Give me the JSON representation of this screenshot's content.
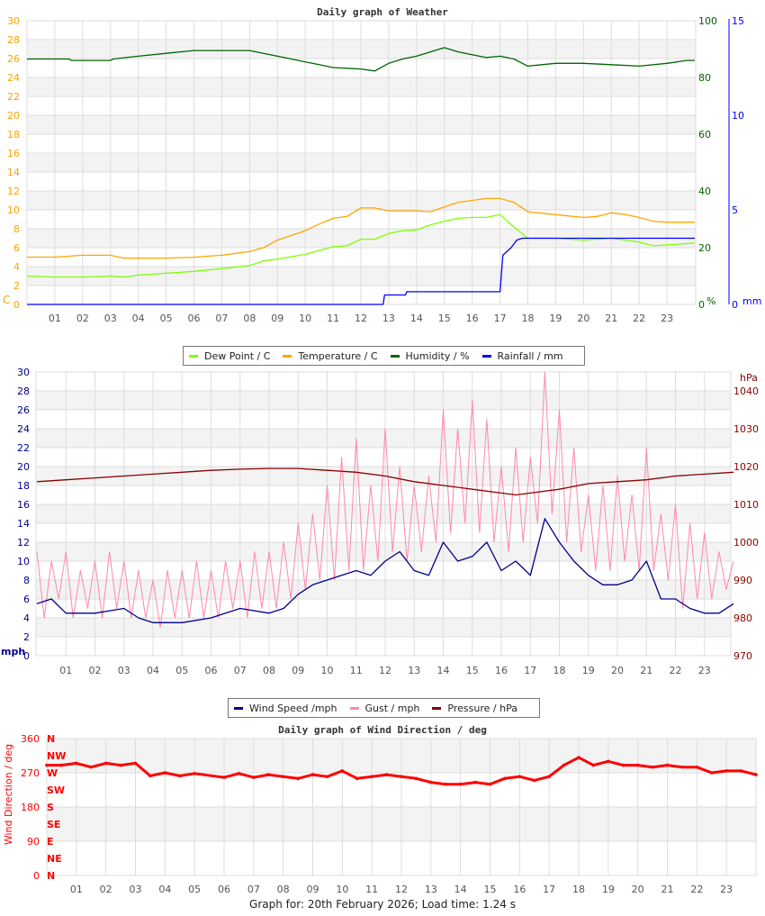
{
  "chart_data": [
    {
      "type": "line",
      "title": "Daily graph of Weather",
      "x_ticks": [
        "01",
        "02",
        "03",
        "04",
        "05",
        "06",
        "07",
        "08",
        "09",
        "10",
        "11",
        "12",
        "13",
        "14",
        "15",
        "16",
        "17",
        "18",
        "19",
        "20",
        "21",
        "22",
        "23"
      ],
      "xlim": [
        0,
        24
      ],
      "grid": true,
      "legend_position": "bottom",
      "axes": {
        "left": {
          "label": "C",
          "ylim": [
            0,
            30
          ],
          "step": 2,
          "color": "#f8a400"
        },
        "right1": {
          "label": "%",
          "ylim": [
            0,
            100
          ],
          "step": 20,
          "color": "#006400"
        },
        "right2": {
          "label": "mm",
          "ylim": [
            0,
            15
          ],
          "step": 5,
          "color": "#0000ff"
        }
      },
      "series": [
        {
          "name": "Dew Point / C",
          "axis": "left",
          "color": "#80ff00",
          "x": [
            0,
            1,
            2,
            3,
            3.5,
            4,
            5,
            6,
            7,
            8,
            8.5,
            9,
            10,
            10.5,
            11,
            11.5,
            12,
            12.5,
            13,
            13.5,
            14,
            14.5,
            15,
            15.5,
            16,
            16.5,
            17,
            17.5,
            18,
            19,
            20,
            21,
            22,
            22.5,
            23,
            24
          ],
          "y": [
            3.0,
            2.9,
            2.9,
            3.0,
            2.9,
            3.1,
            3.3,
            3.5,
            3.8,
            4.1,
            4.6,
            4.8,
            5.3,
            5.7,
            6.1,
            6.2,
            6.9,
            6.9,
            7.5,
            7.8,
            7.9,
            8.4,
            8.8,
            9.1,
            9.2,
            9.2,
            9.5,
            8.2,
            7.0,
            7.0,
            6.8,
            7.0,
            6.6,
            6.2,
            6.3,
            6.5
          ]
        },
        {
          "name": "Temperature / C",
          "axis": "left",
          "color": "#ffa500",
          "x": [
            0,
            1,
            2,
            3,
            3.5,
            4,
            5,
            6,
            7,
            8,
            8.5,
            9,
            10,
            10.5,
            11,
            11.5,
            12,
            12.5,
            13,
            14,
            14.5,
            15,
            15.5,
            16,
            16.5,
            17,
            17.5,
            18,
            19,
            20,
            20.5,
            21,
            21.5,
            22,
            22.5,
            23,
            24
          ],
          "y": [
            5.0,
            5.0,
            5.2,
            5.2,
            4.9,
            4.9,
            4.9,
            5.0,
            5.2,
            5.6,
            6.0,
            6.8,
            7.8,
            8.5,
            9.1,
            9.3,
            10.2,
            10.2,
            9.9,
            9.9,
            9.8,
            10.3,
            10.8,
            11.0,
            11.2,
            11.2,
            10.8,
            9.8,
            9.5,
            9.2,
            9.3,
            9.7,
            9.5,
            9.2,
            8.8,
            8.7,
            8.7
          ]
        },
        {
          "name": "Humidity / %",
          "axis": "right1",
          "color": "#006400",
          "x": [
            0,
            1.5,
            1.6,
            3,
            3.1,
            4,
            5,
            6,
            8,
            8.5,
            9,
            9.5,
            10,
            10.5,
            11,
            12,
            12.5,
            13,
            13.5,
            14,
            14.5,
            15,
            15.5,
            16,
            16.5,
            17,
            17.5,
            18,
            18.5,
            19,
            20,
            21,
            22,
            23,
            23.7,
            24
          ],
          "y": [
            86.5,
            86.5,
            86,
            86,
            86.5,
            87.5,
            88.5,
            89.5,
            89.5,
            88.5,
            87.5,
            86.5,
            85.5,
            84.5,
            83.5,
            83,
            82.3,
            85,
            86.5,
            87.5,
            89,
            90.5,
            89,
            88,
            87,
            87.5,
            86.5,
            84,
            84.5,
            85,
            85,
            84.5,
            84,
            85,
            86,
            86
          ]
        },
        {
          "name": "Rainfall / mm",
          "axis": "right2",
          "color": "#0000ff",
          "x": [
            0,
            12.8,
            12.85,
            13.6,
            13.65,
            17,
            17.1,
            17.4,
            17.6,
            17.8,
            24
          ],
          "y": [
            0,
            0,
            0.5,
            0.5,
            0.67,
            0.67,
            2.6,
            3.0,
            3.4,
            3.5,
            3.5
          ]
        }
      ]
    },
    {
      "type": "line",
      "title": "",
      "x_ticks": [
        "01",
        "02",
        "03",
        "04",
        "05",
        "06",
        "07",
        "08",
        "09",
        "10",
        "11",
        "12",
        "13",
        "14",
        "15",
        "16",
        "17",
        "18",
        "19",
        "20",
        "21",
        "22",
        "23"
      ],
      "xlim": [
        0,
        24
      ],
      "grid": true,
      "legend_position": "bottom",
      "axes": {
        "left": {
          "label": "mph",
          "ylim": [
            0,
            30
          ],
          "step": 2,
          "color": "#00008b"
        },
        "right1": {
          "label": "hPa",
          "ylim": [
            970,
            1045
          ],
          "ticks": [
            970,
            980,
            990,
            1000,
            1010,
            1020,
            1030,
            1040
          ],
          "color": "#8b0000"
        }
      },
      "series": [
        {
          "name": "Gust / mph",
          "axis": "left",
          "color": "#ff88aa",
          "x_step": 0.25,
          "y": [
            11,
            4,
            10,
            6,
            11,
            4,
            9,
            5,
            10,
            4,
            11,
            5,
            10,
            4,
            9,
            4,
            8,
            3,
            9,
            4,
            9,
            4,
            10,
            4,
            9,
            4,
            10,
            5,
            10,
            4,
            11,
            5,
            11,
            5,
            12,
            6,
            14,
            7,
            15,
            8,
            18,
            8,
            21,
            9,
            23,
            9,
            18,
            10,
            24,
            11,
            20,
            10,
            18,
            11,
            19,
            12,
            26,
            13,
            24,
            14,
            27,
            13,
            25,
            12,
            20,
            11,
            22,
            12,
            21,
            14,
            30,
            15,
            26,
            12,
            22,
            11,
            17,
            9,
            18,
            9,
            19,
            10,
            17,
            9,
            22,
            9,
            15,
            8,
            16,
            5,
            14,
            6,
            13,
            6,
            11,
            7,
            10
          ]
        },
        {
          "name": "Wind Speed /mph",
          "axis": "left",
          "color": "#00008b",
          "x": [
            0,
            0.5,
            1,
            2,
            3,
            3.5,
            4,
            5,
            6,
            7,
            8,
            8.5,
            9,
            9.5,
            10,
            10.5,
            11,
            11.5,
            12,
            12.5,
            13,
            13.5,
            14,
            14.5,
            15,
            15.5,
            16,
            16.5,
            17,
            17.5,
            18,
            18.5,
            19,
            19.5,
            20,
            20.5,
            21,
            21.5,
            22,
            22.5,
            23,
            23.5,
            24
          ],
          "y": [
            5.5,
            6,
            4.5,
            4.5,
            5,
            4,
            3.5,
            3.5,
            4,
            5,
            4.5,
            5,
            6.5,
            7.5,
            8,
            8.5,
            9,
            8.5,
            10,
            11,
            9,
            8.5,
            12,
            10,
            10.5,
            12,
            9,
            10,
            8.5,
            14.5,
            12,
            10,
            8.5,
            7.5,
            7.5,
            8,
            10,
            6,
            6,
            5,
            4.5,
            4.5,
            5.5
          ]
        },
        {
          "name": "Pressure / hPa",
          "axis": "right1",
          "color": "#8b0000",
          "x": [
            0,
            1,
            2,
            3,
            4,
            5,
            6,
            7,
            8,
            9,
            10,
            11,
            12,
            13,
            14,
            15,
            16,
            16.5,
            17,
            18,
            19,
            20,
            21,
            22,
            23,
            24
          ],
          "y": [
            1016,
            1016.5,
            1017,
            1017.5,
            1018,
            1018.5,
            1019,
            1019.3,
            1019.5,
            1019.5,
            1019,
            1018.5,
            1017.5,
            1016,
            1015,
            1014,
            1013,
            1012.5,
            1013,
            1014,
            1015.5,
            1016,
            1016.5,
            1017.5,
            1018,
            1018.5
          ]
        }
      ]
    },
    {
      "type": "scatter",
      "title": "Daily graph of Wind Direction / deg",
      "ylabel": "Wind Direction / deg",
      "x_ticks": [
        "01",
        "02",
        "03",
        "04",
        "05",
        "06",
        "07",
        "08",
        "09",
        "10",
        "11",
        "12",
        "13",
        "14",
        "15",
        "16",
        "17",
        "18",
        "19",
        "20",
        "21",
        "22",
        "23"
      ],
      "xlim": [
        0,
        24
      ],
      "ylim": [
        0,
        360
      ],
      "y_ticks": [
        0,
        90,
        180,
        270,
        360
      ],
      "compass_labels": [
        {
          "label": "N",
          "deg": 360
        },
        {
          "label": "NW",
          "deg": 315
        },
        {
          "label": "W",
          "deg": 270
        },
        {
          "label": "SW",
          "deg": 225
        },
        {
          "label": "S",
          "deg": 180
        },
        {
          "label": "SE",
          "deg": 135
        },
        {
          "label": "E",
          "deg": 90
        },
        {
          "label": "NE",
          "deg": 45
        },
        {
          "label": "N",
          "deg": 0
        }
      ],
      "grid": true,
      "color": "#ff0000",
      "series": [
        {
          "name": "",
          "color": "#ff0000",
          "x": [
            0,
            0.5,
            1,
            1.5,
            2,
            2.5,
            3,
            3.5,
            4,
            4.5,
            5,
            6,
            6.5,
            7,
            7.5,
            8,
            8.5,
            9,
            9.5,
            10,
            10.5,
            11,
            11.5,
            12,
            12.5,
            13,
            13.5,
            14,
            14.5,
            15,
            15.5,
            16,
            16.5,
            17,
            17.5,
            18,
            18.5,
            19,
            19.5,
            20,
            20.5,
            21,
            21.5,
            22,
            22.5,
            23,
            23.5,
            24
          ],
          "y": [
            290,
            290,
            295,
            285,
            295,
            290,
            295,
            262,
            270,
            262,
            268,
            258,
            268,
            258,
            265,
            260,
            255,
            265,
            260,
            275,
            255,
            260,
            265,
            260,
            255,
            245,
            240,
            240,
            245,
            240,
            255,
            260,
            250,
            260,
            290,
            310,
            290,
            300,
            290,
            290,
            285,
            290,
            285,
            285,
            270,
            275,
            275,
            265
          ]
        }
      ]
    }
  ],
  "footer": "Graph for: 20th February 2026; Load time: 1.24 s"
}
